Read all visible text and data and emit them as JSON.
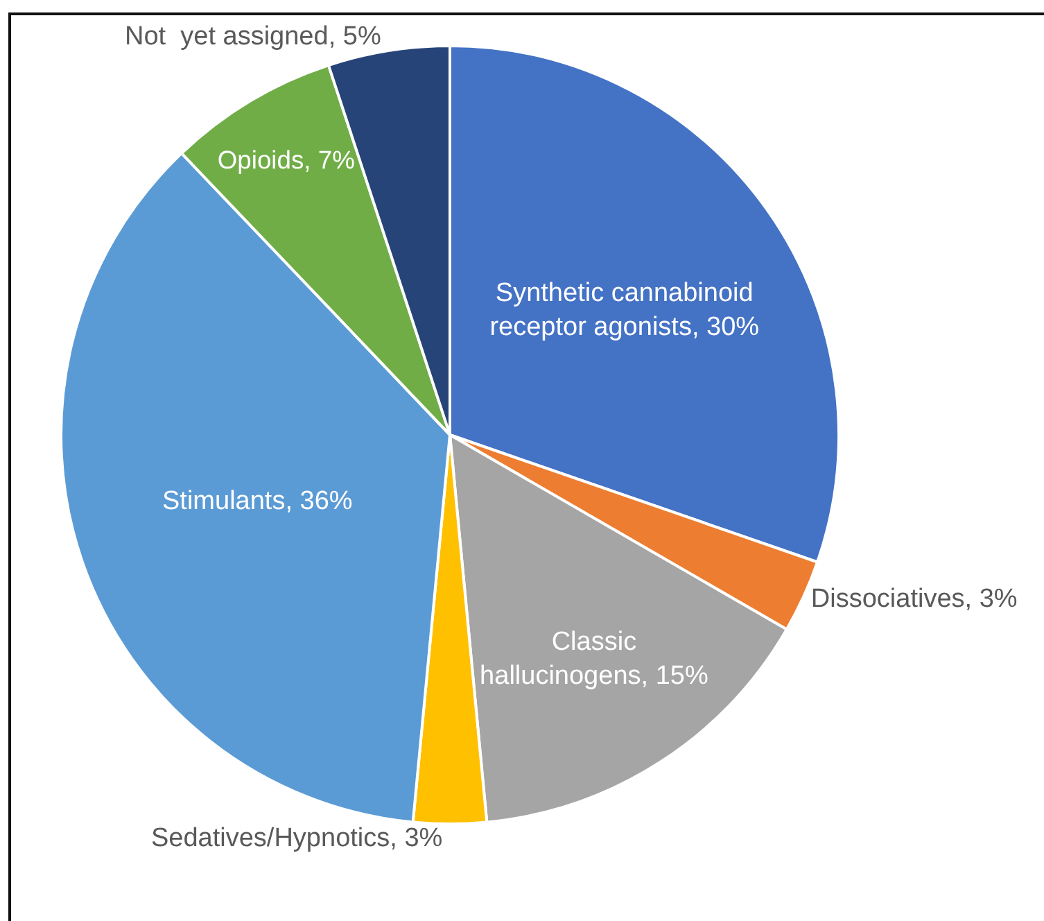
{
  "chart_data": {
    "type": "pie",
    "categories": [
      "Synthetic cannabinoid receptor agonists",
      "Dissociatives",
      "Classic hallucinogens",
      "Sedatives/Hypnotics",
      "Stimulants",
      "Opioids",
      "Not  yet assigned"
    ],
    "values": [
      30,
      3,
      15,
      3,
      36,
      7,
      5
    ],
    "value_labels": [
      "30%",
      "3%",
      "15%",
      "3%",
      "36%",
      "7%",
      "5%"
    ],
    "colors": [
      "#4472c4",
      "#ed7d31",
      "#a5a5a5",
      "#ffc000",
      "#5b9bd5",
      "#70ad47",
      "#264478"
    ],
    "legend": false
  }
}
